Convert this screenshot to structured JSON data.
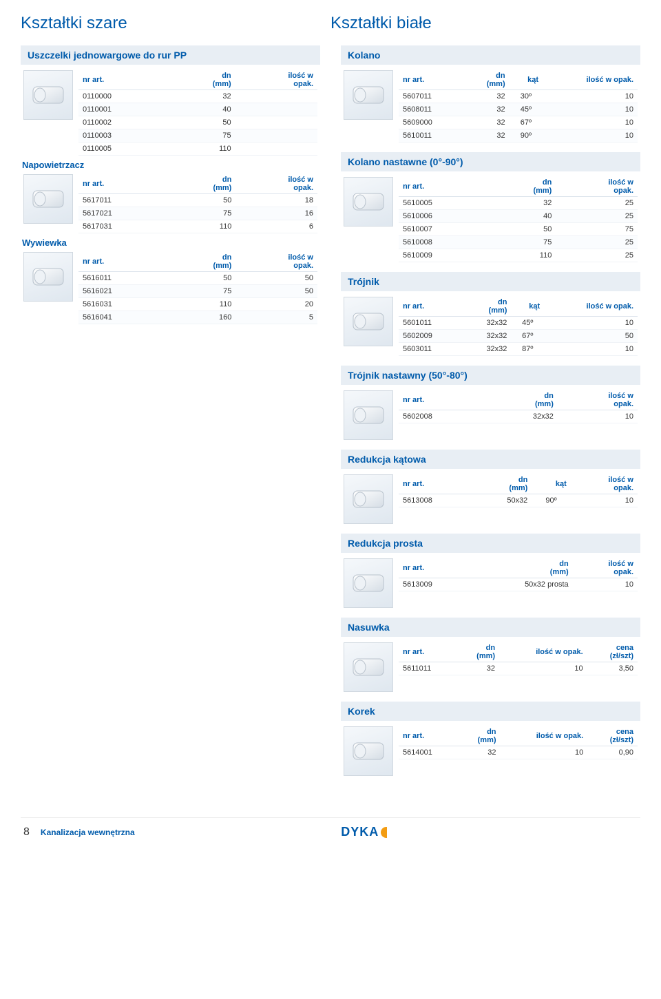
{
  "page": {
    "top_left_title": "Kształtki szare",
    "top_right_title": "Kształtki białe",
    "footer_page_num": "8",
    "footer_title": "Kanalizacja wewnętrzna",
    "brand": "DYKA"
  },
  "colors": {
    "primary": "#005bab",
    "header_bg": "#e8eef4",
    "row_alt": "#fafcfe",
    "border": "#dde4ec"
  },
  "left": [
    {
      "header": "Uszczelki jednowargowe do rur PP",
      "cols": [
        "nr art.",
        "dn\n(mm)",
        "ilość w\nopak."
      ],
      "col_align": [
        "l",
        "r",
        "r"
      ],
      "rows": [
        [
          "0110000",
          "32",
          ""
        ],
        [
          "0110001",
          "40",
          ""
        ],
        [
          "0110002",
          "50",
          ""
        ],
        [
          "0110003",
          "75",
          ""
        ],
        [
          "0110005",
          "110",
          ""
        ]
      ]
    },
    {
      "sub_header": "Napowietrzacz",
      "cols": [
        "nr art.",
        "dn\n(mm)",
        "ilość w\nopak."
      ],
      "col_align": [
        "l",
        "r",
        "r"
      ],
      "rows": [
        [
          "5617011",
          "50",
          "18"
        ],
        [
          "5617021",
          "75",
          "16"
        ],
        [
          "5617031",
          "110",
          "6"
        ]
      ]
    },
    {
      "sub_header": "Wywiewka",
      "cols": [
        "nr art.",
        "dn\n(mm)",
        "ilość w\nopak."
      ],
      "col_align": [
        "l",
        "r",
        "r"
      ],
      "rows": [
        [
          "5616011",
          "50",
          "50"
        ],
        [
          "5616021",
          "75",
          "50"
        ],
        [
          "5616031",
          "110",
          "20"
        ],
        [
          "5616041",
          "160",
          "5"
        ]
      ]
    }
  ],
  "right": [
    {
      "header": "Kolano",
      "cols": [
        "nr art.",
        "dn\n(mm)",
        "kąt",
        "ilość w opak."
      ],
      "col_align": [
        "l",
        "r",
        "c",
        "r"
      ],
      "rows": [
        [
          "5607011",
          "32",
          "30º",
          "10"
        ],
        [
          "5608011",
          "32",
          "45º",
          "10"
        ],
        [
          "5609000",
          "32",
          "67º",
          "10"
        ],
        [
          "5610011",
          "32",
          "90º",
          "10"
        ]
      ]
    },
    {
      "header": "Kolano nastawne (0°-90°)",
      "cols": [
        "nr art.",
        "dn\n(mm)",
        "ilość w\nopak."
      ],
      "col_align": [
        "l",
        "r",
        "r"
      ],
      "rows": [
        [
          "5610005",
          "32",
          "25"
        ],
        [
          "5610006",
          "40",
          "25"
        ],
        [
          "5610007",
          "50",
          "75"
        ],
        [
          "5610008",
          "75",
          "25"
        ],
        [
          "5610009",
          "110",
          "25"
        ]
      ]
    },
    {
      "header": "Trójnik",
      "cols": [
        "nr art.",
        "dn\n(mm)",
        "kąt",
        "ilość w opak."
      ],
      "col_align": [
        "l",
        "r",
        "c",
        "r"
      ],
      "rows": [
        [
          "5601011",
          "32x32",
          "45º",
          "10"
        ],
        [
          "5602009",
          "32x32",
          "67º",
          "50"
        ],
        [
          "5603011",
          "32x32",
          "87º",
          "10"
        ]
      ]
    },
    {
      "header": "Trójnik nastawny (50°-80°)",
      "cols": [
        "nr art.",
        "dn\n(mm)",
        "ilość w\nopak."
      ],
      "col_align": [
        "l",
        "r",
        "r"
      ],
      "rows": [
        [
          "5602008",
          "32x32",
          "10"
        ]
      ]
    },
    {
      "header": "Redukcja kątowa",
      "cols": [
        "nr art.",
        "dn\n(mm)",
        "kąt",
        "ilość w\nopak."
      ],
      "col_align": [
        "l",
        "r",
        "c",
        "r"
      ],
      "rows": [
        [
          "5613008",
          "50x32",
          "90º",
          "10"
        ]
      ]
    },
    {
      "header": "Redukcja prosta",
      "cols": [
        "nr art.",
        "dn\n(mm)",
        "ilość w\nopak."
      ],
      "col_align": [
        "l",
        "r",
        "r"
      ],
      "rows": [
        [
          "5613009",
          "50x32 prosta",
          "10"
        ]
      ]
    },
    {
      "header": "Nasuwka",
      "cols": [
        "nr art.",
        "dn\n(mm)",
        "ilość w opak.",
        "cena\n(zł/szt)"
      ],
      "col_align": [
        "l",
        "r",
        "r",
        "r"
      ],
      "rows": [
        [
          "5611011",
          "32",
          "10",
          "3,50"
        ]
      ]
    },
    {
      "header": "Korek",
      "cols": [
        "nr art.",
        "dn\n(mm)",
        "ilość w opak.",
        "cena\n(zł/szt)"
      ],
      "col_align": [
        "l",
        "r",
        "r",
        "r"
      ],
      "rows": [
        [
          "5614001",
          "32",
          "10",
          "0,90"
        ]
      ]
    }
  ]
}
